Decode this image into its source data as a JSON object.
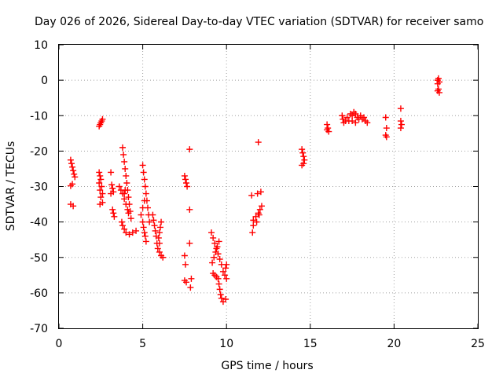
{
  "chart_data": {
    "type": "scatter",
    "title": "Day 026 of 2026, Sidereal Day-to-day VTEC variation (SDTVAR) for receiver samo",
    "xlabel": "GPS time / hours",
    "ylabel": "SDTVAR / TECUs",
    "xlim": [
      0,
      25
    ],
    "ylim": [
      -70,
      10
    ],
    "xticks": [
      "0",
      "5",
      "10",
      "15",
      "20",
      "25"
    ],
    "xtick_values": [
      0,
      5,
      10,
      15,
      20,
      25
    ],
    "yticks": [
      "10",
      "0",
      "-10",
      "-20",
      "-30",
      "-40",
      "-50",
      "-60",
      "-70"
    ],
    "ytick_values": [
      10,
      0,
      -10,
      -20,
      -30,
      -40,
      -50,
      -60,
      -70
    ],
    "grid": true,
    "marker": "+",
    "color": "#ff0000",
    "series": [
      {
        "name": "SDTVAR",
        "points": [
          [
            0.7,
            -22.5
          ],
          [
            0.75,
            -23.5
          ],
          [
            0.8,
            -24.5
          ],
          [
            0.85,
            -25.5
          ],
          [
            0.9,
            -26.5
          ],
          [
            0.95,
            -27.3
          ],
          [
            0.7,
            -29.8
          ],
          [
            0.8,
            -29.3
          ],
          [
            0.7,
            -35
          ],
          [
            0.85,
            -35.5
          ],
          [
            2.4,
            -26
          ],
          [
            2.45,
            -27
          ],
          [
            2.5,
            -28
          ],
          [
            2.4,
            -29
          ],
          [
            2.55,
            -30
          ],
          [
            2.45,
            -31
          ],
          [
            2.6,
            -32
          ],
          [
            2.5,
            -33
          ],
          [
            2.45,
            -35
          ],
          [
            2.6,
            -34.5
          ],
          [
            2.4,
            -13
          ],
          [
            2.45,
            -12.5
          ],
          [
            2.5,
            -12
          ],
          [
            2.55,
            -11.5
          ],
          [
            2.6,
            -11
          ],
          [
            3.1,
            -26
          ],
          [
            3.15,
            -29.5
          ],
          [
            3.2,
            -30.5
          ],
          [
            3.25,
            -31.5
          ],
          [
            3.1,
            -32
          ],
          [
            3.2,
            -36.5
          ],
          [
            3.25,
            -37.5
          ],
          [
            3.3,
            -38.5
          ],
          [
            3.6,
            -30
          ],
          [
            3.7,
            -31
          ],
          [
            3.8,
            -32
          ],
          [
            3.9,
            -33.5
          ],
          [
            4.0,
            -35
          ],
          [
            4.1,
            -36.5
          ],
          [
            4.15,
            -37.5
          ],
          [
            3.75,
            -40
          ],
          [
            3.8,
            -41
          ],
          [
            3.9,
            -42
          ],
          [
            4.0,
            -43
          ],
          [
            4.2,
            -43.5
          ],
          [
            4.4,
            -43
          ],
          [
            4.6,
            -42.5
          ],
          [
            3.8,
            -19
          ],
          [
            3.85,
            -21
          ],
          [
            3.9,
            -23
          ],
          [
            3.95,
            -25
          ],
          [
            4.0,
            -27
          ],
          [
            4.05,
            -29
          ],
          [
            4.1,
            -31
          ],
          [
            4.15,
            -33
          ],
          [
            4.2,
            -35
          ],
          [
            4.25,
            -37
          ],
          [
            4.3,
            -39
          ],
          [
            3.9,
            -32
          ],
          [
            3.95,
            -31
          ],
          [
            5.0,
            -24
          ],
          [
            5.05,
            -26
          ],
          [
            5.1,
            -28
          ],
          [
            5.15,
            -30
          ],
          [
            5.2,
            -32
          ],
          [
            5.25,
            -34
          ],
          [
            5.3,
            -36
          ],
          [
            5.35,
            -38
          ],
          [
            5.4,
            -40
          ],
          [
            4.9,
            -38
          ],
          [
            5.0,
            -36
          ],
          [
            5.1,
            -34
          ],
          [
            5.0,
            -40
          ],
          [
            5.05,
            -41.5
          ],
          [
            5.1,
            -43
          ],
          [
            5.15,
            -44
          ],
          [
            5.2,
            -45.5
          ],
          [
            5.6,
            -38
          ],
          [
            5.65,
            -39.5
          ],
          [
            5.7,
            -41
          ],
          [
            5.75,
            -42.5
          ],
          [
            5.8,
            -44
          ],
          [
            5.85,
            -46
          ],
          [
            5.9,
            -47.5
          ],
          [
            6.0,
            -48.5
          ],
          [
            6.1,
            -49.5
          ],
          [
            6.2,
            -50
          ],
          [
            6.1,
            -40
          ],
          [
            6.05,
            -41.5
          ],
          [
            6.0,
            -43
          ],
          [
            5.95,
            -44.5
          ],
          [
            6.0,
            -46
          ],
          [
            7.5,
            -27
          ],
          [
            7.55,
            -28
          ],
          [
            7.6,
            -29
          ],
          [
            7.65,
            -30
          ],
          [
            7.5,
            -49.5
          ],
          [
            7.55,
            -52
          ],
          [
            7.5,
            -56.5
          ],
          [
            7.6,
            -57
          ],
          [
            7.8,
            -19.5
          ],
          [
            7.8,
            -36.5
          ],
          [
            7.8,
            -46
          ],
          [
            7.9,
            -56
          ],
          [
            7.85,
            -58.5
          ],
          [
            9.1,
            -43
          ],
          [
            9.2,
            -44.5
          ],
          [
            9.3,
            -46
          ],
          [
            9.4,
            -47.5
          ],
          [
            9.5,
            -49
          ],
          [
            9.6,
            -50.5
          ],
          [
            9.7,
            -52
          ],
          [
            9.15,
            -51.5
          ],
          [
            9.25,
            -50
          ],
          [
            9.35,
            -48.5
          ],
          [
            9.45,
            -47
          ],
          [
            9.55,
            -45.5
          ],
          [
            9.2,
            -54.5
          ],
          [
            9.3,
            -55
          ],
          [
            9.4,
            -55.5
          ],
          [
            9.5,
            -56
          ],
          [
            9.55,
            -57.5
          ],
          [
            9.6,
            -59
          ],
          [
            9.65,
            -60.5
          ],
          [
            9.7,
            -61.5
          ],
          [
            9.8,
            -54
          ],
          [
            9.95,
            -53
          ],
          [
            10.0,
            -52
          ],
          [
            9.9,
            -55
          ],
          [
            10.0,
            -56
          ],
          [
            9.8,
            -62.5
          ],
          [
            9.95,
            -61.8
          ],
          [
            11.5,
            -32.5
          ],
          [
            11.6,
            -41
          ],
          [
            11.55,
            -43
          ],
          [
            11.6,
            -39.5
          ],
          [
            11.75,
            -38.5
          ],
          [
            11.9,
            -37.5
          ],
          [
            12.0,
            -36.5
          ],
          [
            12.1,
            -35.5
          ],
          [
            11.8,
            -40
          ],
          [
            11.95,
            -38
          ],
          [
            11.85,
            -32
          ],
          [
            12.05,
            -31.5
          ],
          [
            11.9,
            -17.5
          ],
          [
            14.5,
            -19.5
          ],
          [
            14.55,
            -20.5
          ],
          [
            14.6,
            -21.5
          ],
          [
            14.65,
            -22.5
          ],
          [
            14.6,
            -23.5
          ],
          [
            14.5,
            -24
          ],
          [
            16.0,
            -12.5
          ],
          [
            16.05,
            -13.5
          ],
          [
            16.1,
            -14.5
          ],
          [
            16.0,
            -14
          ],
          [
            16.9,
            -10
          ],
          [
            16.95,
            -11
          ],
          [
            17.0,
            -12
          ],
          [
            17.1,
            -11.5
          ],
          [
            17.2,
            -10.5
          ],
          [
            17.3,
            -11.5
          ],
          [
            17.4,
            -9.5
          ],
          [
            17.5,
            -10
          ],
          [
            17.6,
            -9
          ],
          [
            17.7,
            -9.5
          ],
          [
            17.8,
            -10.5
          ],
          [
            17.9,
            -11
          ],
          [
            18.0,
            -10
          ],
          [
            18.1,
            -11
          ],
          [
            18.2,
            -10.5
          ],
          [
            18.3,
            -11.5
          ],
          [
            18.4,
            -12
          ],
          [
            17.5,
            -11.5
          ],
          [
            17.7,
            -12
          ],
          [
            19.5,
            -10.5
          ],
          [
            19.55,
            -13.5
          ],
          [
            19.5,
            -15.5
          ],
          [
            19.55,
            -16
          ],
          [
            20.4,
            -8
          ],
          [
            20.4,
            -11.5
          ],
          [
            20.45,
            -12.5
          ],
          [
            20.4,
            -13.5
          ],
          [
            22.6,
            0
          ],
          [
            22.65,
            0.5
          ],
          [
            22.7,
            -0.5
          ],
          [
            22.6,
            -1
          ],
          [
            22.65,
            -2.5
          ],
          [
            22.7,
            -3.5
          ],
          [
            22.6,
            -3
          ]
        ]
      }
    ]
  }
}
